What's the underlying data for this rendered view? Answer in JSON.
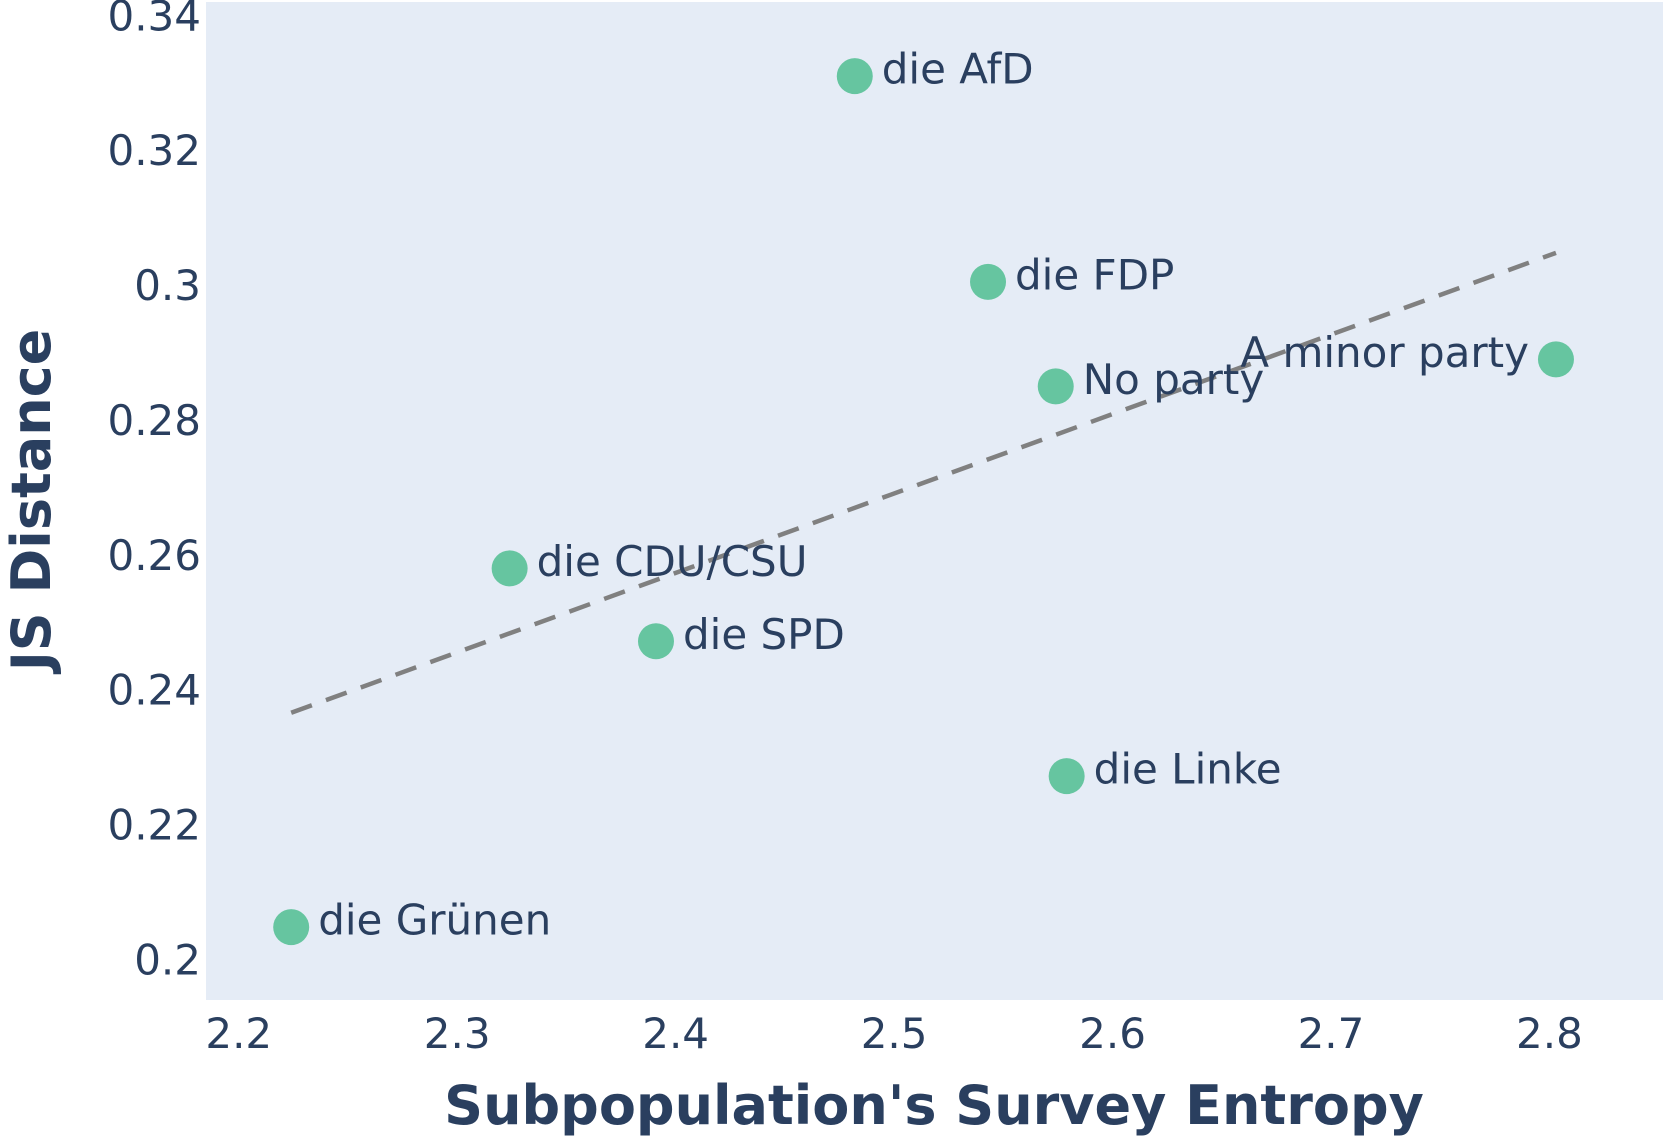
{
  "chart_data": {
    "type": "scatter",
    "title": "",
    "xlabel": "Subpopulation's Survey Entropy",
    "ylabel": "JS Distance",
    "xlim": [
      2.185,
      2.852
    ],
    "ylim": [
      0.1945,
      0.3425
    ],
    "xticks": [
      2.2,
      2.3,
      2.4,
      2.5,
      2.6,
      2.7,
      2.8
    ],
    "xtick_labels": [
      "2.2",
      "2.3",
      "2.4",
      "2.5",
      "2.6",
      "2.7",
      "2.8"
    ],
    "yticks": [
      0.2,
      0.22,
      0.24,
      0.26,
      0.28,
      0.3,
      0.32,
      0.34
    ],
    "ytick_labels": [
      "0.2",
      "0.22",
      "0.24",
      "0.26",
      "0.28",
      "0.3",
      "0.32",
      "0.34"
    ],
    "grid": false,
    "legend": false,
    "colors": {
      "plot_bg": "#e5ecf6",
      "marker": "#66c5a0",
      "trendline": "#808080",
      "text": "#2a3f5f"
    },
    "points": [
      {
        "label": "die AfD",
        "x": 2.482,
        "y": 0.3315,
        "label_side": "right"
      },
      {
        "label": "die FDP",
        "x": 2.543,
        "y": 0.301,
        "label_side": "right"
      },
      {
        "label": "A minor party",
        "x": 2.803,
        "y": 0.2895,
        "label_side": "left"
      },
      {
        "label": "No party",
        "x": 2.574,
        "y": 0.2855,
        "label_side": "right"
      },
      {
        "label": "die CDU/CSU",
        "x": 2.324,
        "y": 0.2585,
        "label_side": "right"
      },
      {
        "label": "die SPD",
        "x": 2.391,
        "y": 0.2477,
        "label_side": "right"
      },
      {
        "label": "die Linke",
        "x": 2.579,
        "y": 0.2277,
        "label_side": "right"
      },
      {
        "label": "die Grünen",
        "x": 2.224,
        "y": 0.2053,
        "label_side": "right"
      }
    ],
    "trendline": {
      "style": "dashed",
      "x": [
        2.224,
        2.803
      ],
      "y": [
        0.2371,
        0.3053
      ]
    }
  }
}
